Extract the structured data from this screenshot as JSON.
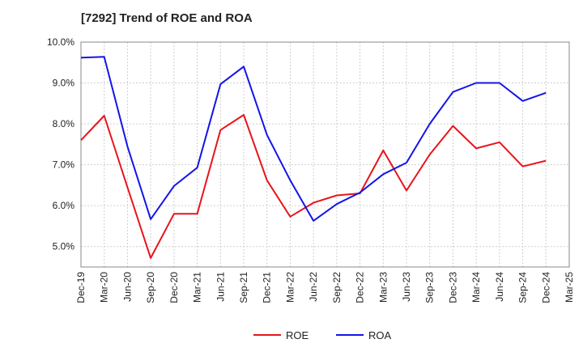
{
  "chart_data": {
    "type": "line",
    "title": "[7292]  Trend of ROE and ROA",
    "xlabel": "",
    "ylabel": "",
    "categories": [
      "Dec-19",
      "Mar-20",
      "Jun-20",
      "Sep-20",
      "Dec-20",
      "Mar-21",
      "Jun-21",
      "Sep-21",
      "Dec-21",
      "Mar-22",
      "Jun-22",
      "Sep-22",
      "Dec-22",
      "Mar-23",
      "Jun-23",
      "Sep-23",
      "Dec-23",
      "Mar-24",
      "Jun-24",
      "Sep-24",
      "Dec-24",
      "Mar-25"
    ],
    "ylim": [
      4.5,
      10.0
    ],
    "yticks": [
      "5.0%",
      "6.0%",
      "7.0%",
      "8.0%",
      "9.0%",
      "10.0%"
    ],
    "ytick_values": [
      5.0,
      6.0,
      7.0,
      8.0,
      9.0,
      10.0
    ],
    "grid": true,
    "legend_position": "bottom-center",
    "series": [
      {
        "name": "ROE",
        "color": "#e8141b",
        "values": [
          7.6,
          8.2,
          6.45,
          4.72,
          5.8,
          5.8,
          7.85,
          8.22,
          6.62,
          5.73,
          6.07,
          6.25,
          6.3,
          7.35,
          6.37,
          7.25,
          7.95,
          7.4,
          7.55,
          6.96,
          7.1,
          null
        ]
      },
      {
        "name": "ROA",
        "color": "#1414e8",
        "values": [
          9.62,
          9.64,
          7.45,
          5.67,
          6.48,
          6.93,
          8.97,
          9.4,
          7.73,
          6.62,
          5.63,
          6.04,
          6.32,
          6.77,
          7.05,
          8.0,
          8.78,
          9.0,
          9.0,
          8.56,
          8.76,
          null
        ]
      }
    ]
  }
}
